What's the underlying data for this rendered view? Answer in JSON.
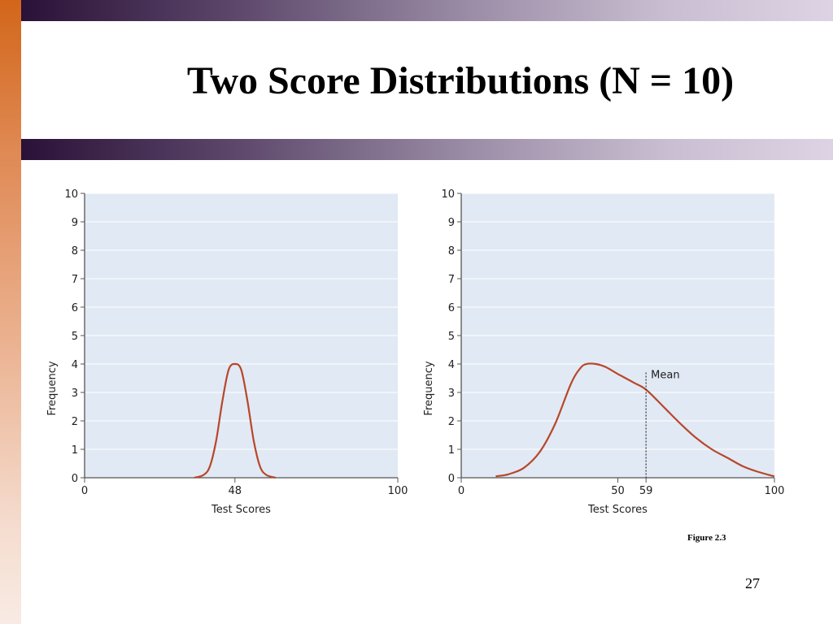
{
  "slide": {
    "title": "Two Score Distributions (N = 10)",
    "caption": "Figure 2.3",
    "page_number": "27"
  },
  "colors": {
    "plot_background": "#e1e9f4",
    "curve": "#b7472a",
    "axis": "#555555",
    "gridline": "#ffffff"
  },
  "chart_data": [
    {
      "type": "line",
      "title": "",
      "xlabel": "Test Scores",
      "ylabel": "Frequency",
      "xlim": [
        0,
        100
      ],
      "ylim": [
        0,
        10
      ],
      "x_ticks": [
        "0",
        "48",
        "100"
      ],
      "y_ticks": [
        "0",
        "1",
        "2",
        "3",
        "4",
        "5",
        "6",
        "7",
        "8",
        "9",
        "10"
      ],
      "grid": true,
      "series": [
        {
          "x": [
            35,
            38,
            40,
            42,
            44,
            46,
            48,
            50,
            52,
            54,
            56,
            58,
            61
          ],
          "y": [
            0,
            0.1,
            0.4,
            1.3,
            2.7,
            3.8,
            4.0,
            3.8,
            2.7,
            1.3,
            0.4,
            0.1,
            0
          ]
        }
      ]
    },
    {
      "type": "line",
      "title": "",
      "xlabel": "Test Scores",
      "ylabel": "Frequency",
      "xlim": [
        0,
        100
      ],
      "ylim": [
        0,
        10
      ],
      "x_ticks": [
        "0",
        "50",
        "59",
        "100"
      ],
      "y_ticks": [
        "0",
        "1",
        "2",
        "3",
        "4",
        "5",
        "6",
        "7",
        "8",
        "9",
        "10"
      ],
      "grid": true,
      "series": [
        {
          "x": [
            11,
            15,
            20,
            25,
            30,
            35,
            38,
            40,
            43,
            46,
            50,
            55,
            59,
            65,
            70,
            75,
            80,
            85,
            90,
            95,
            100
          ],
          "y": [
            0.05,
            0.12,
            0.35,
            0.9,
            1.9,
            3.3,
            3.85,
            4.0,
            4.0,
            3.9,
            3.65,
            3.35,
            3.1,
            2.45,
            1.9,
            1.4,
            1.0,
            0.7,
            0.4,
            0.2,
            0.05
          ]
        }
      ],
      "reference_line": {
        "x": 59,
        "label": "Mean"
      }
    }
  ]
}
